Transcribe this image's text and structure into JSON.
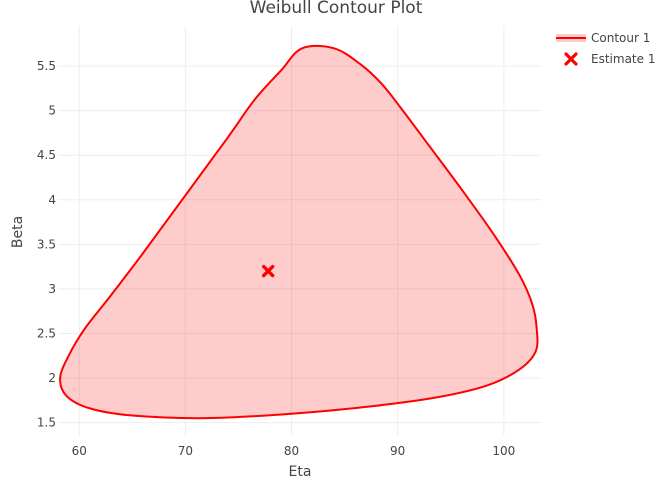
{
  "chart_data": {
    "type": "area",
    "title": "Weibull Contour Plot",
    "xlabel": "Eta",
    "ylabel": "Beta",
    "xlim": [
      58.0,
      103.5
    ],
    "ylim": [
      1.35,
      5.95
    ],
    "x_ticks": [
      60,
      70,
      80,
      90,
      100
    ],
    "y_ticks": [
      1.5,
      2,
      2.5,
      3,
      3.5,
      4,
      4.5,
      5,
      5.5
    ],
    "y_tick_labels": [
      "1.5",
      "2",
      "2.5",
      "3",
      "3.5",
      "4",
      "4.5",
      "5",
      "5.5"
    ],
    "grid": true,
    "legend_position": "top-right",
    "series": [
      {
        "name": "Contour 1",
        "kind": "closed-contour",
        "color": "#ff0000",
        "fill": "rgba(255,0,0,0.2)",
        "points": [
          [
            81.0,
            5.7
          ],
          [
            84.0,
            5.7
          ],
          [
            86.5,
            5.52
          ],
          [
            88.5,
            5.3
          ],
          [
            90.3,
            5.03
          ],
          [
            93.0,
            4.6
          ],
          [
            96.0,
            4.12
          ],
          [
            99.0,
            3.62
          ],
          [
            101.5,
            3.15
          ],
          [
            102.7,
            2.82
          ],
          [
            103.1,
            2.55
          ],
          [
            103.0,
            2.3
          ],
          [
            101.5,
            2.1
          ],
          [
            98.5,
            1.92
          ],
          [
            94.0,
            1.79
          ],
          [
            88.0,
            1.69
          ],
          [
            80.0,
            1.6
          ],
          [
            72.0,
            1.55
          ],
          [
            65.0,
            1.58
          ],
          [
            61.0,
            1.66
          ],
          [
            58.8,
            1.8
          ],
          [
            58.2,
            2.0
          ],
          [
            59.0,
            2.25
          ],
          [
            60.5,
            2.55
          ],
          [
            63.0,
            2.93
          ],
          [
            66.0,
            3.4
          ],
          [
            70.0,
            4.05
          ],
          [
            74.0,
            4.7
          ],
          [
            76.5,
            5.12
          ],
          [
            79.0,
            5.45
          ],
          [
            81.0,
            5.7
          ]
        ]
      },
      {
        "name": "Estimate 1",
        "kind": "marker",
        "marker": "x",
        "color": "#ff0000",
        "points": [
          [
            77.8,
            3.2
          ]
        ]
      }
    ]
  }
}
